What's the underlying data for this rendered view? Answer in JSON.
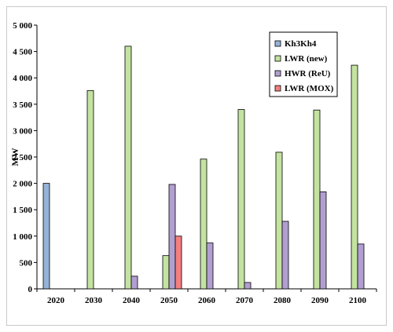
{
  "chart_data": {
    "type": "bar",
    "categories": [
      "2020",
      "2030",
      "2040",
      "2050",
      "2060",
      "2070",
      "2080",
      "2090",
      "2100"
    ],
    "series": [
      {
        "name": "Kh3Kh4",
        "color": "#95b3d7",
        "values": [
          2000,
          0,
          0,
          0,
          0,
          0,
          0,
          0,
          0
        ]
      },
      {
        "name": "LWR (new)",
        "color": "#c4e3a1",
        "values": [
          0,
          3760,
          4600,
          630,
          2460,
          3400,
          2590,
          3390,
          4240
        ]
      },
      {
        "name": "HWR (ReU)",
        "color": "#b29fd1",
        "values": [
          0,
          0,
          240,
          1980,
          870,
          120,
          1280,
          1840,
          850
        ]
      },
      {
        "name": "LWR (MOX)",
        "color": "#f28080",
        "values": [
          0,
          0,
          0,
          1000,
          0,
          0,
          0,
          0,
          0
        ]
      }
    ],
    "ylabel": "MW",
    "ylim": [
      0,
      5000
    ],
    "yticks": [
      0,
      500,
      1000,
      1500,
      2000,
      2500,
      3000,
      3500,
      4000,
      4500,
      5000
    ],
    "ytick_labels": [
      "0",
      "500",
      "1 000",
      "1 500",
      "2 000",
      "2 500",
      "3 000",
      "3 500",
      "4 000",
      "4 500",
      "5 000"
    ],
    "grid": false,
    "legend_position": "top-right"
  }
}
